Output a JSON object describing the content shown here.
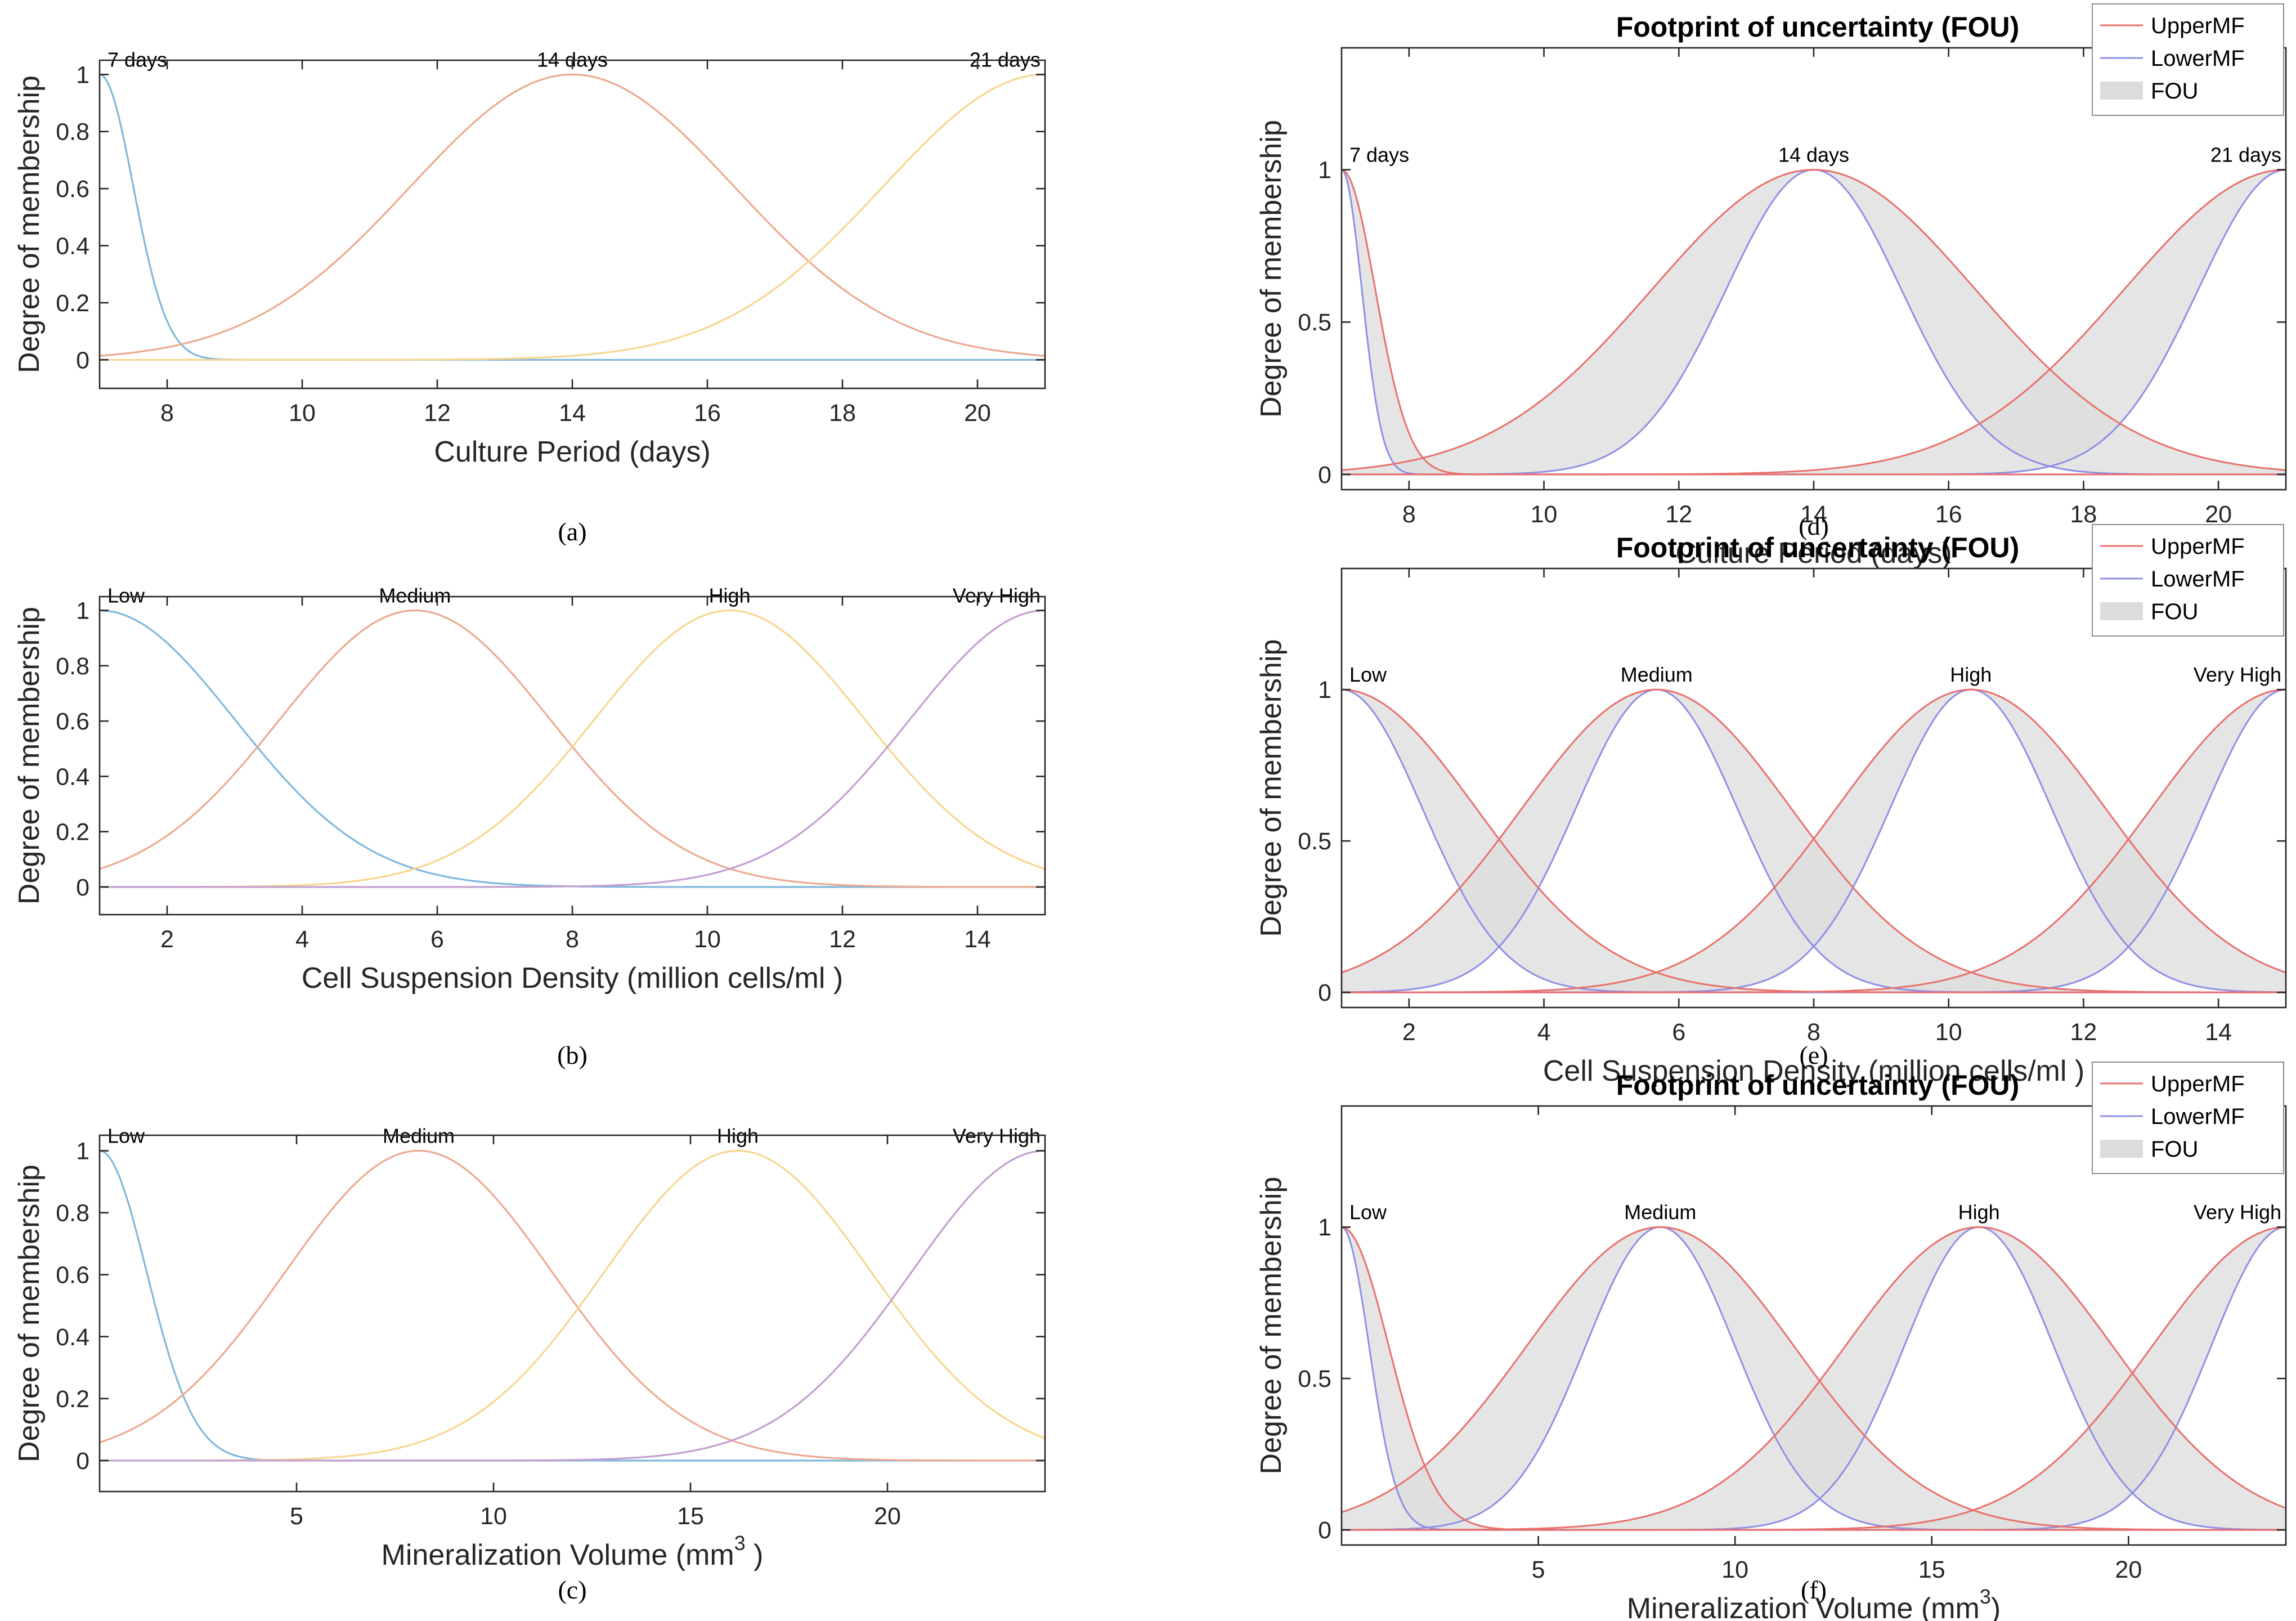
{
  "chart_data": [
    {
      "id": "a",
      "type": "line",
      "caption": "(a)",
      "title": "",
      "xlabel": "Culture Period (days)",
      "ylabel": "Degree of membership",
      "xlim": [
        7,
        21
      ],
      "ylim": [
        -0.1,
        1.05
      ],
      "xticks": [
        8,
        10,
        12,
        14,
        16,
        18,
        20
      ],
      "yticks": [
        0,
        0.2,
        0.4,
        0.6,
        0.8,
        1
      ],
      "ytick_labels": [
        "0",
        "0.2",
        "0.4",
        "0.6",
        "0.8",
        "1"
      ],
      "series": [
        {
          "name": "7 days",
          "center": 7,
          "sigma": 0.5,
          "color": "#7fb8de"
        },
        {
          "name": "14 days",
          "center": 14,
          "sigma": 2.4,
          "color": "#eea990"
        },
        {
          "name": "21 days",
          "center": 21,
          "sigma": 2.4,
          "color": "#f7d68f"
        }
      ]
    },
    {
      "id": "b",
      "type": "line",
      "caption": "(b)",
      "title": "",
      "xlabel": "Cell Suspension Density (million cells/ml )",
      "ylabel": "Degree of membership",
      "xlim": [
        1,
        15
      ],
      "ylim": [
        -0.1,
        1.05
      ],
      "xticks": [
        2,
        4,
        6,
        8,
        10,
        12,
        14
      ],
      "yticks": [
        0,
        0.2,
        0.4,
        0.6,
        0.8,
        1
      ],
      "ytick_labels": [
        "0",
        "0.2",
        "0.4",
        "0.6",
        "0.8",
        "1"
      ],
      "series": [
        {
          "name": "Low",
          "center": 1,
          "sigma": 2.0,
          "color": "#7fb8de"
        },
        {
          "name": "Medium",
          "center": 5.67,
          "sigma": 2.0,
          "color": "#eea990"
        },
        {
          "name": "High",
          "center": 10.33,
          "sigma": 2.0,
          "color": "#f7d68f"
        },
        {
          "name": "Very High",
          "center": 15,
          "sigma": 2.0,
          "color": "#c39fd0"
        }
      ]
    },
    {
      "id": "c",
      "type": "line",
      "caption": "(c)",
      "title": "",
      "xlabel": "Mineralization Volume (mm",
      "xlabel_sup": "3",
      "xlabel_end": " )",
      "ylabel": "Degree of membership",
      "xlim": [
        0,
        24
      ],
      "ylim": [
        -0.1,
        1.05
      ],
      "xticks": [
        5,
        10,
        15,
        20
      ],
      "yticks": [
        0,
        0.2,
        0.4,
        0.6,
        0.8,
        1
      ],
      "ytick_labels": [
        "0",
        "0.2",
        "0.4",
        "0.6",
        "0.8",
        "1"
      ],
      "series": [
        {
          "name": "Low",
          "center": 0,
          "sigma": 1.2,
          "color": "#7fb8de"
        },
        {
          "name": "Medium",
          "center": 8.1,
          "sigma": 3.4,
          "color": "#eea990"
        },
        {
          "name": "High",
          "center": 16.2,
          "sigma": 3.4,
          "color": "#f7d68f"
        },
        {
          "name": "Very High",
          "center": 24,
          "sigma": 3.4,
          "color": "#c39fd0"
        }
      ]
    },
    {
      "id": "d",
      "type": "area",
      "caption": "(d)",
      "title": "Footprint of uncertainty (FOU)",
      "xlabel": "Culture Period (days)",
      "ylabel": "Degree of membership",
      "xlim": [
        7,
        21
      ],
      "ylim": [
        -0.05,
        1.4
      ],
      "xticks": [
        8,
        10,
        12,
        14,
        16,
        18,
        20
      ],
      "yticks": [
        0,
        0.5,
        1
      ],
      "ytick_labels": [
        "0",
        "0.5",
        "1"
      ],
      "legend": [
        "UpperMF",
        "LowerMF",
        "FOU"
      ],
      "legend_colors": {
        "upper": "#e8706c",
        "lower": "#8f8fe6",
        "fou": "#dcdcdc"
      },
      "series": [
        {
          "name": "7 days",
          "center": 7,
          "sigma_upper": 0.5,
          "sigma_lower": 0.3
        },
        {
          "name": "14 days",
          "center": 14,
          "sigma_upper": 2.4,
          "sigma_lower": 1.3
        },
        {
          "name": "21 days",
          "center": 21,
          "sigma_upper": 2.4,
          "sigma_lower": 1.3
        }
      ]
    },
    {
      "id": "e",
      "type": "area",
      "caption": "(e)",
      "title": "Footprint of uncertainty (FOU)",
      "xlabel": "Cell Suspension Density (million cells/ml )",
      "ylabel": "Degree of membership",
      "xlim": [
        1,
        15
      ],
      "ylim": [
        -0.05,
        1.4
      ],
      "xticks": [
        2,
        4,
        6,
        8,
        10,
        12,
        14
      ],
      "yticks": [
        0,
        0.5,
        1
      ],
      "ytick_labels": [
        "0",
        "0.5",
        "1"
      ],
      "legend": [
        "UpperMF",
        "LowerMF",
        "FOU"
      ],
      "legend_colors": {
        "upper": "#e8706c",
        "lower": "#8f8fe6",
        "fou": "#dcdcdc"
      },
      "series": [
        {
          "name": "Low",
          "center": 1,
          "sigma_upper": 2.0,
          "sigma_lower": 1.2
        },
        {
          "name": "Medium",
          "center": 5.67,
          "sigma_upper": 2.0,
          "sigma_lower": 1.2
        },
        {
          "name": "High",
          "center": 10.33,
          "sigma_upper": 2.0,
          "sigma_lower": 1.2
        },
        {
          "name": "Very High",
          "center": 15,
          "sigma_upper": 2.0,
          "sigma_lower": 1.2
        }
      ]
    },
    {
      "id": "f",
      "type": "area",
      "caption": "(f)",
      "title": "Footprint of uncertainty (FOU)",
      "xlabel": "Mineralization Volume (mm",
      "xlabel_sup": "3",
      "xlabel_end": ")",
      "ylabel": "Degree of membership",
      "xlim": [
        0,
        24
      ],
      "ylim": [
        -0.05,
        1.4
      ],
      "xticks": [
        5,
        10,
        15,
        20
      ],
      "yticks": [
        0,
        0.5,
        1
      ],
      "ytick_labels": [
        "0",
        "0.5",
        "1"
      ],
      "legend": [
        "UpperMF",
        "LowerMF",
        "FOU"
      ],
      "legend_colors": {
        "upper": "#e8706c",
        "lower": "#8f8fe6",
        "fou": "#dcdcdc"
      },
      "series": [
        {
          "name": "Low",
          "center": 0,
          "sigma_upper": 1.2,
          "sigma_lower": 0.7
        },
        {
          "name": "Medium",
          "center": 8.1,
          "sigma_upper": 3.4,
          "sigma_lower": 1.9
        },
        {
          "name": "High",
          "center": 16.2,
          "sigma_upper": 3.4,
          "sigma_lower": 1.9
        },
        {
          "name": "Very High",
          "center": 24,
          "sigma_upper": 3.4,
          "sigma_lower": 1.9
        }
      ]
    }
  ]
}
